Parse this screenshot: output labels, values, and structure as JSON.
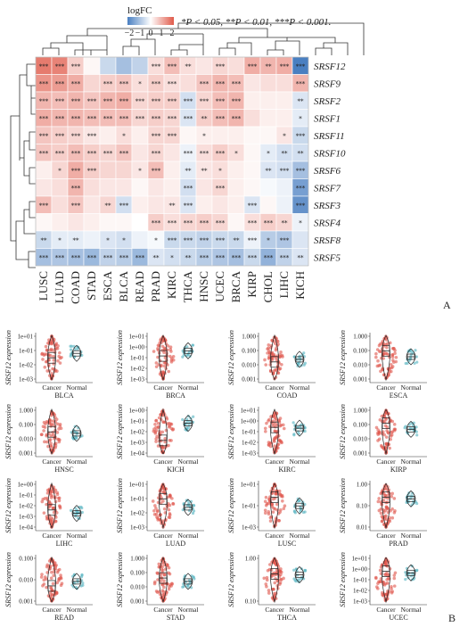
{
  "panel_labels": {
    "a": "A",
    "b": "B"
  },
  "legend": {
    "title": "logFC",
    "ticks": [
      "−2",
      "−1",
      "0",
      "1",
      "2"
    ],
    "note": "*P < 0.05, **P < 0.01, ***P < 0.001."
  },
  "chart_data": [
    {
      "type": "heatmap",
      "title": "",
      "legend_title": "logFC",
      "color_scale": {
        "low": "#4a7fc1",
        "mid": "#ffffff",
        "high": "#e05a4a",
        "range": [
          -2,
          2
        ]
      },
      "columns": [
        "LUSC",
        "LUAD",
        "COAD",
        "STAD",
        "ESCA",
        "BLCA",
        "READ",
        "PRAD",
        "KIRC",
        "THCA",
        "HNSC",
        "UCEC",
        "BRCA",
        "KIRP",
        "CHOL",
        "LIHC",
        "KICH"
      ],
      "rows": [
        "SRSF12",
        "SRSF9",
        "SRSF2",
        "SRSF1",
        "SRSF11",
        "SRSF10",
        "SRSF6",
        "SRSF7",
        "SRSF3",
        "SRSF4",
        "SRSF8",
        "SRSF5"
      ],
      "values": [
        [
          1.6,
          1.5,
          0.6,
          0.1,
          -0.6,
          -1.0,
          -0.7,
          0.4,
          0.8,
          0.4,
          0.3,
          0.5,
          0.4,
          1.0,
          0.9,
          1.0,
          -2.0
        ],
        [
          1.3,
          1.2,
          1.0,
          0.5,
          0.6,
          0.7,
          0.4,
          0.6,
          0.4,
          0.4,
          0.7,
          0.9,
          0.8,
          0.3,
          0.4,
          0.4,
          0.9
        ],
        [
          0.9,
          0.8,
          0.9,
          0.7,
          0.9,
          1.0,
          0.5,
          0.6,
          0.6,
          -0.5,
          0.5,
          0.8,
          0.9,
          0.2,
          0.2,
          0.2,
          -0.4
        ],
        [
          1.0,
          0.9,
          0.9,
          0.8,
          0.8,
          0.8,
          0.5,
          0.6,
          0.5,
          -0.4,
          0.6,
          0.8,
          0.9,
          0.4,
          0.2,
          0.2,
          -0.3
        ],
        [
          0.7,
          0.6,
          0.5,
          0.3,
          0.2,
          0.4,
          0.2,
          0.5,
          0.5,
          0.1,
          0.2,
          0.2,
          0.2,
          0.1,
          0.1,
          0.3,
          -0.6
        ],
        [
          0.7,
          0.6,
          0.8,
          0.6,
          0.5,
          0.7,
          0.3,
          0.5,
          0.3,
          -0.2,
          0.4,
          0.6,
          0.4,
          0.1,
          -0.3,
          -0.5,
          -0.5
        ],
        [
          0.2,
          0.5,
          1.0,
          0.6,
          0.5,
          0.5,
          0.3,
          0.8,
          0.2,
          -0.3,
          0.3,
          0.4,
          0.2,
          0.1,
          -0.4,
          -0.5,
          -1.0
        ],
        [
          0.3,
          0.4,
          0.9,
          0.4,
          0.3,
          0.3,
          0.1,
          0.3,
          0.2,
          -0.5,
          0.3,
          0.5,
          0.2,
          0.1,
          -0.1,
          -0.2,
          -1.5
        ],
        [
          0.8,
          0.4,
          0.7,
          0.3,
          0.5,
          -0.5,
          0.2,
          0.3,
          0.3,
          -0.4,
          0.2,
          0.3,
          0.2,
          -0.4,
          0.1,
          -0.2,
          -1.7
        ],
        [
          0.1,
          0.2,
          0.3,
          0.2,
          0.1,
          0.1,
          0.0,
          0.6,
          0.4,
          0.5,
          0.6,
          0.5,
          0.1,
          0.4,
          0.6,
          0.5,
          -0.2
        ],
        [
          -0.6,
          -0.3,
          -0.3,
          -0.2,
          -0.4,
          -0.5,
          -0.2,
          -0.1,
          -0.6,
          -0.6,
          -0.7,
          -0.6,
          -0.6,
          -0.2,
          -0.8,
          -0.9,
          -0.4
        ],
        [
          -1.0,
          -0.9,
          -1.0,
          -1.1,
          -0.7,
          -0.8,
          -1.1,
          -0.4,
          -0.5,
          -0.6,
          -0.8,
          -0.9,
          -1.0,
          -0.6,
          -1.2,
          -0.7,
          -0.4
        ]
      ],
      "significance": [
        [
          "***",
          "***",
          "***",
          "",
          "",
          "",
          "",
          "***",
          "***",
          "**",
          "",
          "***",
          "",
          "***",
          "**",
          "***",
          "***"
        ],
        [
          "***",
          "***",
          "***",
          "",
          "***",
          "***",
          "*",
          "***",
          "***",
          "",
          "***",
          "***",
          "***",
          "",
          "",
          "",
          "***"
        ],
        [
          "***",
          "***",
          "***",
          "***",
          "***",
          "***",
          "***",
          "***",
          "***",
          "***",
          "***",
          "***",
          "***",
          "",
          "",
          "",
          "**"
        ],
        [
          "***",
          "***",
          "***",
          "***",
          "***",
          "***",
          "***",
          "***",
          "***",
          "***",
          "**",
          "***",
          "***",
          "",
          "",
          "",
          "*"
        ],
        [
          "***",
          "***",
          "***",
          "***",
          "",
          "*",
          "",
          "***",
          "***",
          "",
          "*",
          "",
          "",
          "",
          "",
          "*",
          "***"
        ],
        [
          "***",
          "***",
          "***",
          "***",
          "***",
          "***",
          "",
          "***",
          "",
          "***",
          "***",
          "***",
          "*",
          "",
          "*",
          "**",
          "**"
        ],
        [
          "",
          "*",
          "***",
          "***",
          "",
          "",
          "*",
          "***",
          "",
          "**",
          "**",
          "*",
          "",
          "",
          "**",
          "***",
          "***"
        ],
        [
          "",
          "",
          "***",
          "",
          "",
          "",
          "",
          "",
          "",
          "***",
          "",
          "***",
          "",
          "",
          "",
          "",
          "***"
        ],
        [
          "***",
          "",
          "***",
          "",
          "**",
          "***",
          "",
          "",
          "**",
          "***",
          "",
          "",
          "",
          "***",
          "",
          "",
          "***"
        ],
        [
          "",
          "",
          "",
          "",
          "",
          "",
          "",
          "***",
          "***",
          "***",
          "***",
          "***",
          "",
          "***",
          "***",
          "**",
          "*"
        ],
        [
          "**",
          "*",
          "**",
          "",
          "*",
          "*",
          "",
          "*",
          "***",
          "***",
          "***",
          "***",
          "**",
          "***",
          "*",
          "***",
          ""
        ],
        [
          "***",
          "***",
          "***",
          "***",
          "***",
          "***",
          "***",
          "**",
          "*",
          "**",
          "***",
          "***",
          "***",
          "***",
          "***",
          "***",
          "**"
        ]
      ]
    },
    {
      "type": "violin",
      "title": "SRSF12 expression: Cancer vs Normal",
      "ylabel": "SRSF12 expression",
      "groups": [
        "Cancer",
        "Normal"
      ],
      "colors": {
        "Cancer": "#e0554b",
        "Normal": "#5fb8c4"
      },
      "panels": [
        {
          "name": "BLCA",
          "yticks": [
            "1e+01",
            "1e-01",
            "1e-02",
            "1e-03"
          ],
          "cancer_median": 0.03,
          "normal_median": 0.1
        },
        {
          "name": "BRCA",
          "yticks": [
            "1e+01",
            "1e+00",
            "1e-01",
            "1e-02",
            "1e-03"
          ],
          "cancer_median": 0.05,
          "normal_median": 0.2
        },
        {
          "name": "COAD",
          "yticks": [
            "1.000",
            "0.100",
            "0.010",
            "0.001"
          ],
          "cancer_median": 0.01,
          "normal_median": 0.02
        },
        {
          "name": "ESCA",
          "yticks": [
            "1.000",
            "0.100",
            "0.010",
            "0.001"
          ],
          "cancer_median": 0.2,
          "normal_median": 0.04
        },
        {
          "name": "HNSC",
          "yticks": [
            "1.000",
            "0.100",
            "0.010",
            "0.001"
          ],
          "cancer_median": 0.03,
          "normal_median": 0.02
        },
        {
          "name": "KICH",
          "yticks": [
            "1e+00",
            "1e-01",
            "1e-02",
            "1e-03",
            "1e-04"
          ],
          "cancer_median": 0.003,
          "normal_median": 0.3
        },
        {
          "name": "KIRC",
          "yticks": [
            "1e+01",
            "1e+00",
            "1e-01",
            "1e-02",
            "1e-03"
          ],
          "cancer_median": 0.1,
          "normal_median": 0.08
        },
        {
          "name": "KIRP",
          "yticks": [
            "1.000",
            "0.100",
            "0.010",
            "0.001"
          ],
          "cancer_median": 0.3,
          "normal_median": 0.06
        },
        {
          "name": "LIHC",
          "yticks": [
            "1e+00",
            "1e-01",
            "1e-02",
            "1e-03",
            "1e-04"
          ],
          "cancer_median": 0.01,
          "normal_median": 0.004
        },
        {
          "name": "LUAD",
          "yticks": [
            "1e+01",
            "1e-01",
            "1e-02",
            "1e-03"
          ],
          "cancer_median": 0.2,
          "normal_median": 0.02
        },
        {
          "name": "LUSC",
          "yticks": [
            "1e+01",
            "1e-01",
            "1e-03"
          ],
          "cancer_median": 0.3,
          "normal_median": 0.03
        },
        {
          "name": "PRAD",
          "yticks": [
            "1.00",
            "0.10",
            "0.01"
          ],
          "cancer_median": 0.3,
          "normal_median": 0.2
        },
        {
          "name": "READ",
          "yticks": [
            "0.100",
            "0.010",
            "0.001"
          ],
          "cancer_median": 0.006,
          "normal_median": 0.02
        },
        {
          "name": "STAD",
          "yticks": [
            "1.000",
            "0.100",
            "0.010",
            "0.001"
          ],
          "cancer_median": 0.05,
          "normal_median": 0.02
        },
        {
          "name": "THCA",
          "yticks": [
            "1.00",
            "0.10"
          ],
          "cancer_median": 0.15,
          "normal_median": 0.12
        },
        {
          "name": "UCEC",
          "yticks": [
            "1e+01",
            "1e+00",
            "1e-01",
            "1e-02",
            "1e-03"
          ],
          "cancer_median": 0.3,
          "normal_median": 0.2
        }
      ]
    }
  ]
}
